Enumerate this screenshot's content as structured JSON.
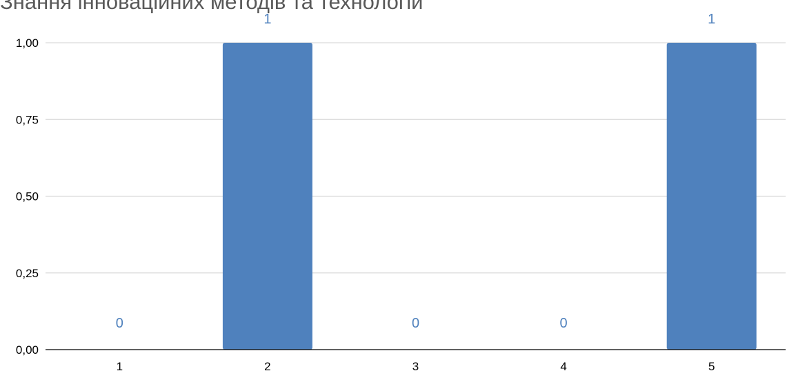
{
  "chart_data": {
    "type": "bar",
    "title": "Знання інноваційних методів та технологій",
    "categories": [
      "1",
      "2",
      "3",
      "4",
      "5"
    ],
    "values": [
      0,
      1,
      0,
      0,
      1
    ],
    "data_labels": [
      "0",
      "1",
      "0",
      "0",
      "1"
    ],
    "y_ticks": [
      "0,00",
      "0,25",
      "0,50",
      "0,75",
      "1,00"
    ],
    "ylim": [
      0,
      1
    ],
    "xlabel": "",
    "ylabel": "",
    "grid": true,
    "legend": "none",
    "bar_color": "#4f81bd",
    "label_color": "#4f81bd",
    "grid_color": "#d9d9d9",
    "axis_color": "#000000"
  }
}
